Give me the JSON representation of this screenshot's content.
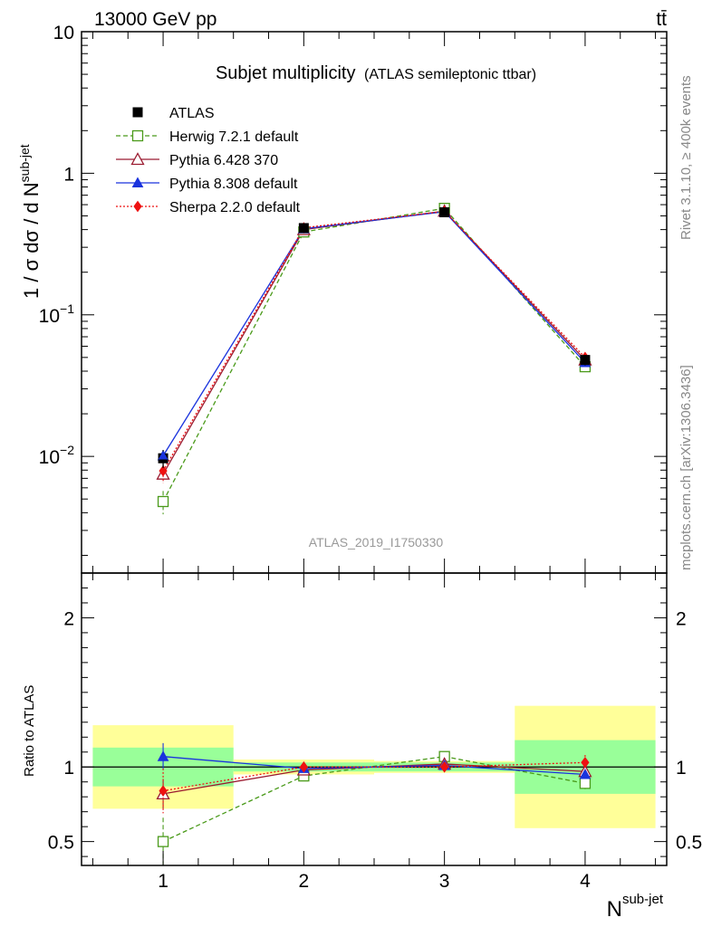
{
  "header": {
    "energy_label": "13000 GeV pp",
    "process_label": "tt̄"
  },
  "side_labels": {
    "rivet": "Rivet 3.1.10, ≥ 400k events",
    "mcplots": "mcplots.cern.ch [arXiv:1306.3436]"
  },
  "chart_data": {
    "type": "scatter",
    "title": "Subjet multiplicity",
    "subtitle": "(ATLAS semileptonic ttbar)",
    "watermark": "ATLAS_2019_I1750330",
    "xlabel": "N",
    "xlabel_sup": "sub-jet",
    "ylabel": "1 / σ dσ / d N",
    "ylabel_sup": "sub-jet",
    "ratio_ylabel": "Ratio to ATLAS",
    "x": [
      1,
      2,
      3,
      4
    ],
    "xlim": [
      0.42,
      4.58
    ],
    "main_ylim": [
      0.0015,
      10
    ],
    "main_yscale": "log",
    "main_yticks": [
      {
        "value": 10,
        "label": "10"
      },
      {
        "value": 1,
        "label": "1"
      },
      {
        "value": 0.1,
        "label": "10",
        "sup": "−1"
      },
      {
        "value": 0.01,
        "label": "10",
        "sup": "−2"
      }
    ],
    "ratio_ylim": [
      0.34,
      2.3
    ],
    "ratio_yticks": [
      {
        "value": 2,
        "label": "2"
      },
      {
        "value": 1,
        "label": "1"
      },
      {
        "value": 0.5,
        "label": "0.5"
      }
    ],
    "xticks": [
      "1",
      "2",
      "3",
      "4"
    ],
    "data": {
      "name": "ATLAS",
      "y": [
        0.0097,
        0.41,
        0.53,
        0.048
      ],
      "yerr": [
        0.0014,
        0.02,
        0.02,
        0.004
      ]
    },
    "series": [
      {
        "name": "Herwig 7.2.1 default",
        "color": "#4a9a1a",
        "dash": "5,3",
        "marker": "open-square",
        "y": [
          0.0048,
          0.385,
          0.565,
          0.043
        ],
        "err": [
          0.0009,
          0.01,
          0.01,
          0.002
        ]
      },
      {
        "name": "Pythia 6.428 370",
        "color": "#9b1b30",
        "dash": "",
        "marker": "open-triangle",
        "y": [
          0.0075,
          0.4,
          0.54,
          0.048
        ],
        "err": [
          0.0008,
          0.01,
          0.01,
          0.002
        ]
      },
      {
        "name": "Pythia 8.308 default",
        "color": "#1a33dd",
        "dash": "",
        "marker": "filled-triangle",
        "y": [
          0.0101,
          0.405,
          0.535,
          0.046
        ],
        "err": [
          0.0006,
          0.01,
          0.01,
          0.002
        ]
      },
      {
        "name": "Sherpa 2.2.0 default",
        "color": "#ee1111",
        "dash": "2,2",
        "marker": "filled-diamond",
        "y": [
          0.0079,
          0.412,
          0.538,
          0.05
        ],
        "err": [
          0.0014,
          0.01,
          0.01,
          0.003
        ]
      }
    ],
    "ratio_bands": [
      {
        "x0": 0.5,
        "x1": 1.5,
        "green": [
          0.87,
          1.13
        ],
        "yellow": [
          0.72,
          1.28
        ]
      },
      {
        "x0": 1.5,
        "x1": 2.5,
        "green": [
          0.97,
          1.03
        ],
        "yellow": [
          0.95,
          1.05
        ]
      },
      {
        "x0": 2.5,
        "x1": 3.5,
        "green": [
          0.97,
          1.03
        ],
        "yellow": [
          0.96,
          1.04
        ]
      },
      {
        "x0": 3.5,
        "x1": 4.5,
        "green": [
          0.82,
          1.18
        ],
        "yellow": [
          0.59,
          1.41
        ]
      }
    ],
    "ratio_series": [
      {
        "name": "Herwig 7.2.1 default",
        "y": [
          0.5,
          0.94,
          1.07,
          0.89
        ],
        "err": [
          0.16,
          0.02,
          0.02,
          0.04
        ]
      },
      {
        "name": "Pythia 6.428 370",
        "y": [
          0.82,
          0.98,
          1.02,
          0.97
        ],
        "err": [
          0.1,
          0.02,
          0.02,
          0.03
        ]
      },
      {
        "name": "Pythia 8.308 default",
        "y": [
          1.07,
          0.99,
          1.01,
          0.95
        ],
        "err": [
          0.09,
          0.02,
          0.02,
          0.03
        ]
      },
      {
        "name": "Sherpa 2.2.0 default",
        "y": [
          0.84,
          1.0,
          1.0,
          1.03
        ],
        "err": [
          0.15,
          0.02,
          0.02,
          0.05
        ]
      }
    ],
    "colors": {
      "band_green": "#99ff99",
      "band_yellow": "#ffff99",
      "data": "#000000"
    }
  }
}
